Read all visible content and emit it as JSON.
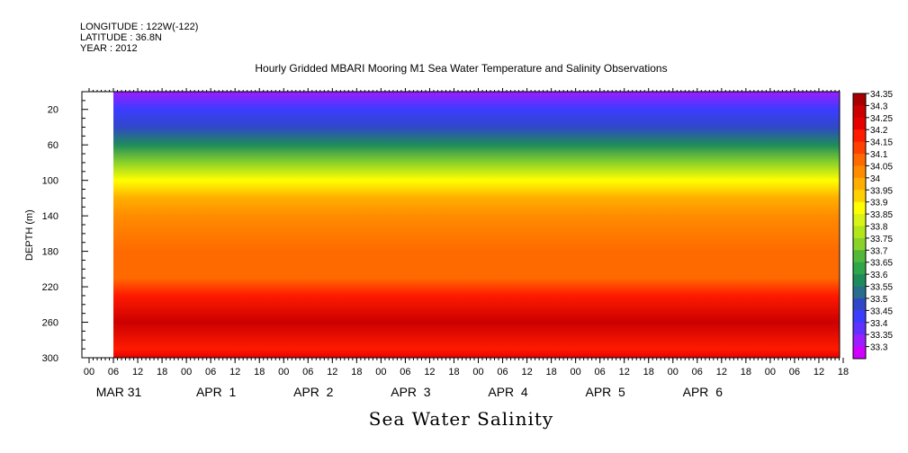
{
  "header": {
    "longitude": "LONGITUDE : 122W(-122)",
    "latitude": "LATITUDE : 36.8N",
    "year": "YEAR : 2012"
  },
  "chart_data": {
    "type": "heatmap",
    "title": "Hourly Gridded MBARI Mooring M1 Sea Water Temperature and Salinity Observations",
    "bottom_title": "Sea Water Salinity",
    "ylabel": "DEPTH (m)",
    "y_axis": {
      "range": [
        300,
        0
      ],
      "ticks": [
        20,
        60,
        100,
        140,
        180,
        220,
        260,
        300
      ]
    },
    "x_axis": {
      "hour_ticks": [
        "00",
        "06",
        "12",
        "18",
        "00",
        "06",
        "12",
        "18",
        "00",
        "06",
        "12",
        "18",
        "00",
        "06",
        "12",
        "18",
        "00",
        "06",
        "12",
        "18",
        "00",
        "06",
        "12",
        "18",
        "00",
        "06",
        "12",
        "18",
        "00",
        "06",
        "12",
        "18"
      ],
      "day_labels": [
        "MAR 31",
        "APR  1",
        "APR  2",
        "APR  3",
        "APR  4",
        "APR  5",
        "APR  6"
      ],
      "data_start_hour": 6
    },
    "colorbar": {
      "levels": [
        "34.35",
        "34.3",
        "34.25",
        "34.2",
        "34.15",
        "34.1",
        "34.05",
        "34",
        "33.95",
        "33.9",
        "33.85",
        "33.8",
        "33.75",
        "33.7",
        "33.65",
        "33.6",
        "33.55",
        "33.5",
        "33.45",
        "33.4",
        "33.35",
        "33.3"
      ],
      "colors": [
        "#a80000",
        "#cc0000",
        "#e60000",
        "#ff1a00",
        "#ff4000",
        "#ff6a00",
        "#ff8c00",
        "#ffae00",
        "#ffd000",
        "#ffff00",
        "#d9f21a",
        "#b2e61a",
        "#8ad22a",
        "#52b83a",
        "#30a64a",
        "#1e8c5a",
        "#2a6e8c",
        "#3048c8",
        "#3c3cff",
        "#6030ff",
        "#9a1eff",
        "#d000ff"
      ]
    },
    "depth_profile": [
      {
        "depth": 0,
        "salinity": 33.33
      },
      {
        "depth": 20,
        "salinity": 33.45
      },
      {
        "depth": 40,
        "salinity": 33.5
      },
      {
        "depth": 60,
        "salinity": 33.62
      },
      {
        "depth": 80,
        "salinity": 33.75
      },
      {
        "depth": 100,
        "salinity": 33.92
      },
      {
        "depth": 120,
        "salinity": 34.0
      },
      {
        "depth": 140,
        "salinity": 34.05
      },
      {
        "depth": 180,
        "salinity": 34.08
      },
      {
        "depth": 210,
        "salinity": 34.12
      },
      {
        "depth": 230,
        "salinity": 34.2
      },
      {
        "depth": 260,
        "salinity": 34.28
      },
      {
        "depth": 290,
        "salinity": 34.2
      },
      {
        "depth": 300,
        "salinity": 34.25
      }
    ]
  }
}
